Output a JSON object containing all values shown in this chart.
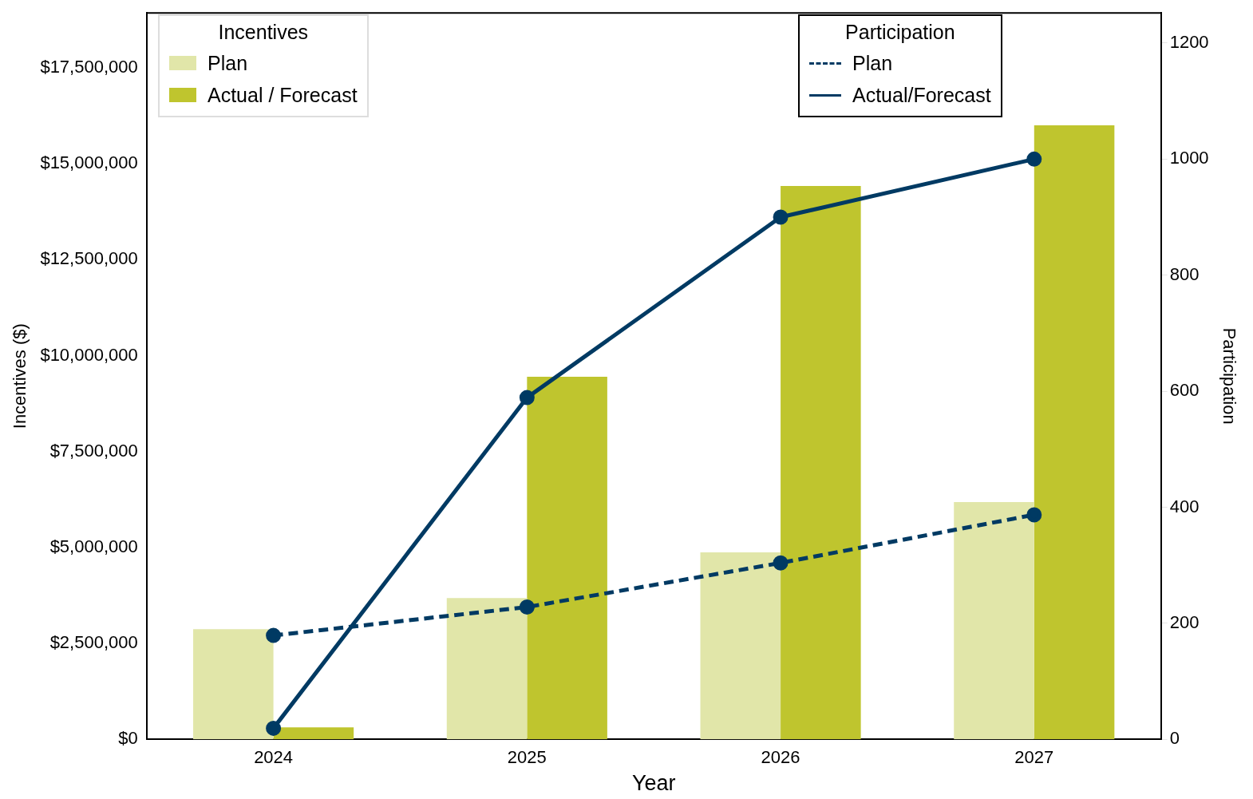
{
  "chart_data": {
    "type": "bar",
    "xlabel": "Year",
    "ylabel": "Incentives ($)",
    "y2label": "Participation",
    "legend_title": "Incentives",
    "annotations": [
      "Participation"
    ],
    "categories": [
      "2024",
      "2025",
      "2026",
      "2027"
    ],
    "series": [
      {
        "name": "Plan",
        "color": "#e1e6a9",
        "values": [
          2870000,
          3680000,
          4870000,
          6180000
        ]
      },
      {
        "name": "Actual / Forecast",
        "color": "#bfc52e",
        "values": [
          310000,
          9450000,
          14420000,
          16000000
        ]
      },
      {
        "name": "Plan",
        "type": "line",
        "axis": "y2",
        "line_style": "dashed",
        "color": "#003a63",
        "values": [
          179,
          228,
          304,
          387
        ]
      },
      {
        "name": "Actual/Forecast",
        "type": "line",
        "axis": "y2",
        "line_style": "solid",
        "color": "#003a63",
        "values": [
          19,
          589,
          900,
          1000
        ]
      }
    ],
    "marker": "circle",
    "legend": "top",
    "grid": false,
    "ylim": [
      0,
      18930000
    ],
    "yticks": [
      {
        "value": 0,
        "label": "$0"
      },
      {
        "value": 2500000,
        "label": "$2,500,000"
      },
      {
        "value": 5000000,
        "label": "$5,000,000"
      },
      {
        "value": 7500000,
        "label": "$7,500,000"
      },
      {
        "value": 10000000,
        "label": "$10,000,000"
      },
      {
        "value": 12500000,
        "label": "$12,500,000"
      },
      {
        "value": 15000000,
        "label": "$15,000,000"
      },
      {
        "value": 17500000,
        "label": "$17,500,000"
      }
    ],
    "y2lim": [
      0,
      1252
    ],
    "y2ticks": [
      0,
      200,
      400,
      600,
      800,
      1000,
      1200
    ]
  }
}
